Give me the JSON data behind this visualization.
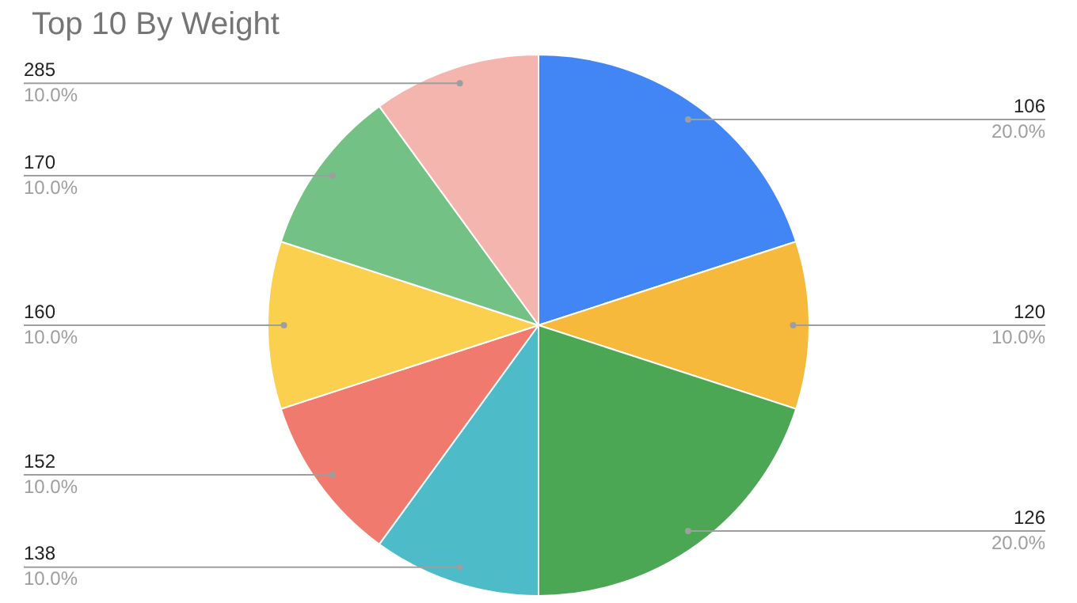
{
  "chart_data": {
    "type": "pie",
    "title": "Top 10 By Weight",
    "categories": [
      "106",
      "120",
      "126",
      "138",
      "152",
      "160",
      "170",
      "285"
    ],
    "values": [
      20,
      10,
      20,
      10,
      10,
      10,
      10,
      10
    ],
    "colors": [
      "#4285f4",
      "#f6b93c",
      "#4ba754",
      "#4dbbc8",
      "#ef7a6d",
      "#fad04e",
      "#74c185",
      "#f4b5ae"
    ],
    "value_labels": [
      "20.0%",
      "10.0%",
      "20.0%",
      "10.0%",
      "10.0%",
      "10.0%",
      "10.0%",
      "10.0%"
    ],
    "legend": false
  }
}
